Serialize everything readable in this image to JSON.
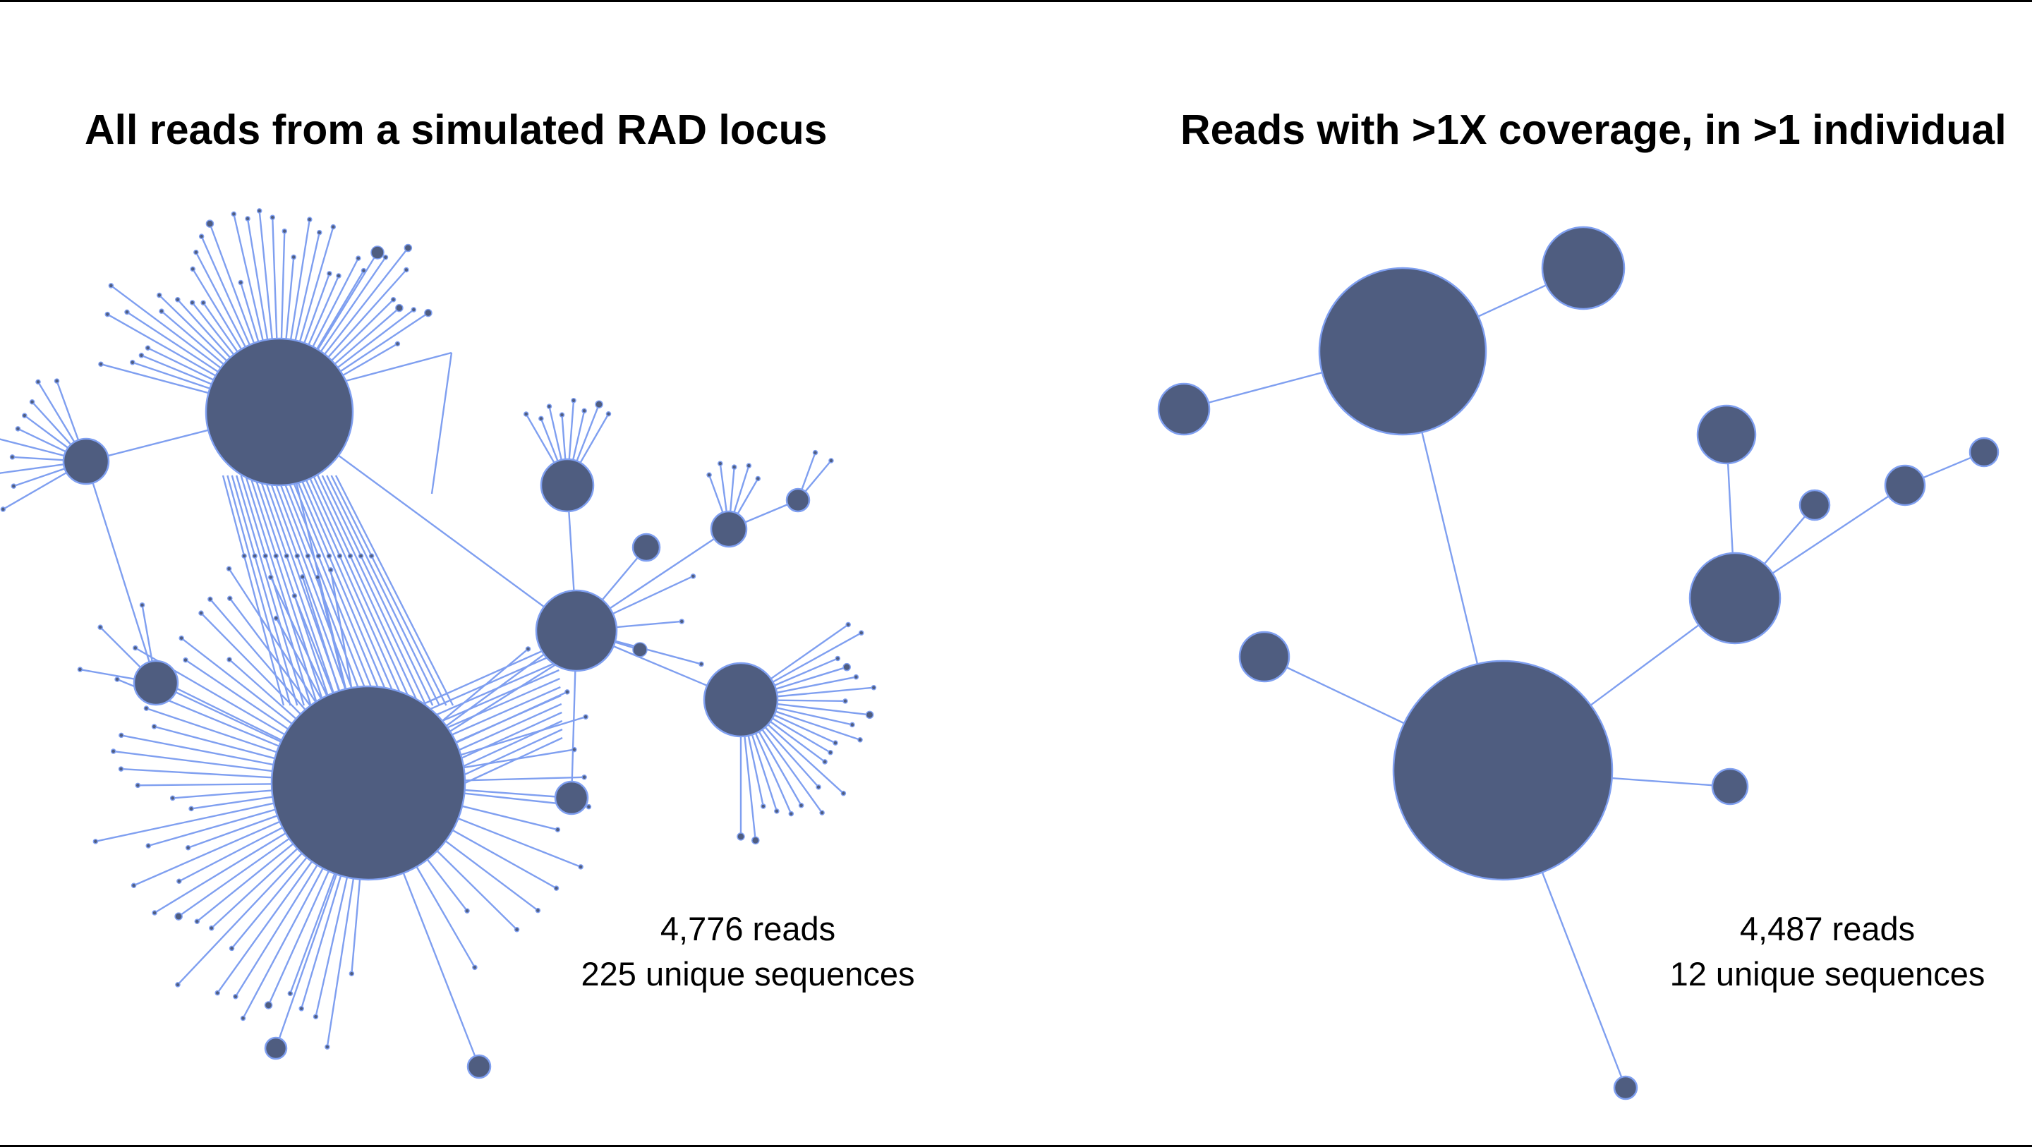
{
  "panels": {
    "left": {
      "title": "All reads from a simulated RAD locus",
      "reads": "4,776 reads",
      "unique": "225 unique sequences"
    },
    "right": {
      "title": "Reads with >1X coverage, in >1 individual",
      "reads": "4,487 reads",
      "unique": "12 unique sequences"
    }
  },
  "colors": {
    "node_fill": "#4f5d80",
    "node_stroke": "#7f9ff0",
    "edge": "#7f9ff0"
  }
}
